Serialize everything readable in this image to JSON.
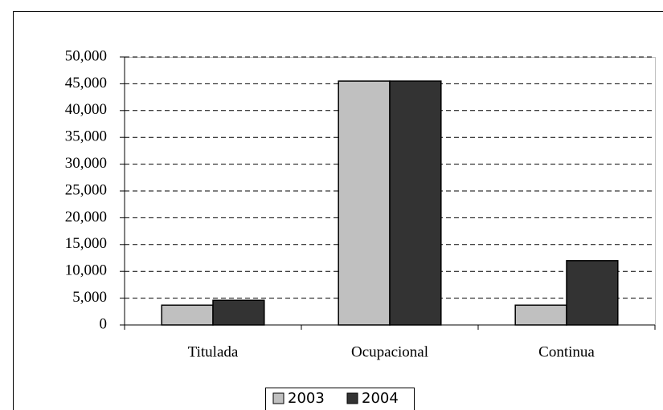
{
  "chart_data": {
    "type": "bar",
    "categories": [
      "Titulada",
      "Ocupacional",
      "Continua"
    ],
    "series": [
      {
        "name": "2003",
        "color": "#c0c0c0",
        "values": [
          3700,
          45500,
          3700
        ]
      },
      {
        "name": "2004",
        "color": "#333333",
        "values": [
          4600,
          45500,
          12000
        ]
      }
    ],
    "ylim": [
      0,
      50000
    ],
    "yticks": [
      0,
      {
        "value": 5000,
        "label": "5,000"
      },
      {
        "value": 10000,
        "label": "10,000"
      },
      {
        "value": 15000,
        "label": "15,000"
      },
      {
        "value": 20000,
        "label": "20,000"
      },
      {
        "value": 25000,
        "label": "25,000"
      },
      {
        "value": 30000,
        "label": "30,000"
      },
      {
        "value": 35000,
        "label": "35,000"
      },
      {
        "value": 40000,
        "label": "40,000"
      },
      {
        "value": 45000,
        "label": "45,000"
      },
      {
        "value": 50000,
        "label": "50,000"
      }
    ],
    "grid": true,
    "legend": "bottom"
  }
}
